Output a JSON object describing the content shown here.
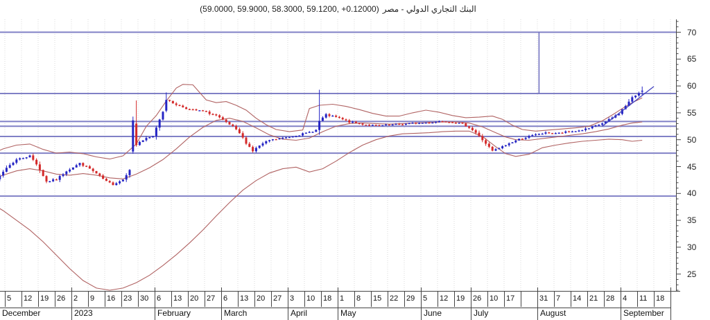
{
  "chart_data": {
    "type": "candlestick",
    "title_values": "(59.0000, 59.9000, 58.3000, 59.1200, +0.12000)",
    "title_name": "البنك التجاري الدولي - مصر",
    "last_quote": {
      "open": 59.0,
      "high": 59.9,
      "low": 58.3,
      "close": 59.12,
      "change": "+0.12000"
    },
    "y_axis": {
      "ticks": [
        70,
        65,
        60,
        55,
        50,
        45,
        40,
        35,
        30,
        25
      ],
      "minor_step": 1,
      "range_shown": [
        22,
        72
      ]
    },
    "x_axis": {
      "week_labels": [
        "5",
        "12",
        "19",
        "26",
        "2",
        "9",
        "16",
        "23",
        "30",
        "6",
        "13",
        "20",
        "27",
        "6",
        "13",
        "20",
        "27",
        "3",
        "10",
        "18",
        "1",
        "8",
        "15",
        "22",
        "29",
        "5",
        "12",
        "19",
        "26",
        "10",
        "17",
        "",
        "31",
        "7",
        "14",
        "21",
        "28",
        "4",
        "11",
        "18"
      ],
      "months": [
        {
          "label": "December",
          "weeks": 4
        },
        {
          "label": "2023",
          "weeks": 5
        },
        {
          "label": "February",
          "weeks": 4
        },
        {
          "label": "March",
          "weeks": 4
        },
        {
          "label": "April",
          "weeks": 3
        },
        {
          "label": "May",
          "weeks": 5
        },
        {
          "label": "June",
          "weeks": 3
        },
        {
          "label": "July",
          "weeks": 4
        },
        {
          "label": "August",
          "weeks": 5
        },
        {
          "label": "September",
          "weeks": 3
        }
      ]
    },
    "close_anchors": [
      [
        0,
        41.3
      ],
      [
        2,
        42.5
      ],
      [
        5,
        44.8
      ],
      [
        8,
        46.3
      ],
      [
        12,
        47.0
      ],
      [
        14,
        45.5
      ],
      [
        17,
        42.2
      ],
      [
        20,
        42.6
      ],
      [
        23,
        44.2
      ],
      [
        27,
        45.6
      ],
      [
        30,
        44.6
      ],
      [
        33,
        43.2
      ],
      [
        35,
        42.2
      ],
      [
        37,
        41.7
      ],
      [
        40,
        42.6
      ],
      [
        42,
        44.5
      ],
      [
        43,
        53.6
      ],
      [
        44,
        49.0
      ],
      [
        45,
        49.6
      ],
      [
        47,
        50.2
      ],
      [
        49,
        50.6
      ],
      [
        50,
        52.3
      ],
      [
        52,
        55.3
      ],
      [
        53,
        57.4
      ],
      [
        55,
        56.8
      ],
      [
        57,
        56.3
      ],
      [
        60,
        55.6
      ],
      [
        64,
        55.3
      ],
      [
        68,
        54.5
      ],
      [
        70,
        53.6
      ],
      [
        73,
        52.4
      ],
      [
        75,
        51.2
      ],
      [
        77,
        49.4
      ],
      [
        79,
        47.9
      ],
      [
        81,
        48.9
      ],
      [
        84,
        49.9
      ],
      [
        88,
        50.3
      ],
      [
        92,
        50.8
      ],
      [
        95,
        51.2
      ],
      [
        98,
        51.8
      ],
      [
        99,
        53.5
      ],
      [
        101,
        54.6
      ],
      [
        104,
        54.2
      ],
      [
        108,
        53.3
      ],
      [
        112,
        52.9
      ],
      [
        116,
        52.6
      ],
      [
        120,
        52.7
      ],
      [
        124,
        52.9
      ],
      [
        128,
        53.1
      ],
      [
        132,
        53.2
      ],
      [
        136,
        53.5
      ],
      [
        139,
        53.3
      ],
      [
        142,
        52.9
      ],
      [
        144,
        52.3
      ],
      [
        146,
        51.3
      ],
      [
        147,
        50.6
      ],
      [
        149,
        49.3
      ],
      [
        151,
        47.9
      ],
      [
        153,
        48.4
      ],
      [
        156,
        49.3
      ],
      [
        159,
        50.1
      ],
      [
        162,
        50.6
      ],
      [
        165,
        51.1
      ],
      [
        168,
        51.3
      ],
      [
        171,
        51.2
      ],
      [
        174,
        51.5
      ],
      [
        177,
        51.7
      ],
      [
        180,
        52.1
      ],
      [
        183,
        52.8
      ],
      [
        185,
        53.3
      ],
      [
        187,
        54.1
      ],
      [
        189,
        54.9
      ],
      [
        191,
        56.3
      ],
      [
        193,
        57.8
      ],
      [
        195,
        58.7
      ],
      [
        196,
        59.12
      ]
    ],
    "candle_overrides": [
      {
        "d": 43,
        "o": 47.8,
        "h": 54.3,
        "l": 47.4,
        "c": 53.6
      },
      {
        "d": 44,
        "o": 53.0,
        "h": 57.3,
        "l": 48.7,
        "c": 49.0
      },
      {
        "d": 53,
        "o": 55.4,
        "h": 58.8,
        "l": 55.1,
        "c": 57.4
      },
      {
        "d": 99,
        "o": 51.8,
        "h": 59.3,
        "l": 50.9,
        "c": 53.5
      },
      {
        "d": 196,
        "o": 59.0,
        "h": 59.9,
        "l": 58.3,
        "c": 59.12
      }
    ],
    "bands": {
      "upper": [
        [
          0,
          47.2
        ],
        [
          4,
          48.3
        ],
        [
          8,
          49.0
        ],
        [
          12,
          49.2
        ],
        [
          16,
          48.2
        ],
        [
          20,
          47.5
        ],
        [
          24,
          47.7
        ],
        [
          28,
          47.4
        ],
        [
          32,
          46.8
        ],
        [
          36,
          46.4
        ],
        [
          40,
          47.0
        ],
        [
          44,
          49.2
        ],
        [
          47,
          52.5
        ],
        [
          50,
          54.5
        ],
        [
          53,
          57.2
        ],
        [
          56,
          59.6
        ],
        [
          58,
          60.3
        ],
        [
          61,
          60.2
        ],
        [
          63,
          58.8
        ],
        [
          65,
          57.4
        ],
        [
          68,
          56.9
        ],
        [
          71,
          57.1
        ],
        [
          74,
          56.4
        ],
        [
          77,
          55.5
        ],
        [
          80,
          54.0
        ],
        [
          83,
          52.8
        ],
        [
          86,
          51.9
        ],
        [
          90,
          51.5
        ],
        [
          94,
          51.8
        ],
        [
          96,
          55.8
        ],
        [
          99,
          56.4
        ],
        [
          103,
          56.6
        ],
        [
          107,
          56.2
        ],
        [
          111,
          55.6
        ],
        [
          115,
          54.9
        ],
        [
          119,
          54.4
        ],
        [
          123,
          54.4
        ],
        [
          127,
          55.0
        ],
        [
          131,
          55.5
        ],
        [
          135,
          55.1
        ],
        [
          139,
          54.5
        ],
        [
          143,
          54.1
        ],
        [
          147,
          54.2
        ],
        [
          151,
          54.4
        ],
        [
          154,
          53.8
        ],
        [
          157,
          52.7
        ],
        [
          160,
          51.9
        ],
        [
          164,
          51.6
        ],
        [
          168,
          51.8
        ],
        [
          172,
          52.0
        ],
        [
          176,
          52.2
        ],
        [
          180,
          52.5
        ],
        [
          184,
          53.5
        ],
        [
          187,
          54.6
        ],
        [
          190,
          55.8
        ],
        [
          193,
          56.9
        ],
        [
          196,
          57.8
        ]
      ],
      "middle": [
        [
          0,
          42.6
        ],
        [
          4,
          43.4
        ],
        [
          8,
          44.2
        ],
        [
          12,
          44.6
        ],
        [
          16,
          44.2
        ],
        [
          20,
          43.6
        ],
        [
          24,
          43.4
        ],
        [
          28,
          43.7
        ],
        [
          32,
          43.4
        ],
        [
          36,
          42.9
        ],
        [
          40,
          42.7
        ],
        [
          44,
          43.6
        ],
        [
          48,
          44.8
        ],
        [
          52,
          46.3
        ],
        [
          56,
          48.3
        ],
        [
          60,
          50.5
        ],
        [
          64,
          52.3
        ],
        [
          68,
          53.6
        ],
        [
          72,
          54.0
        ],
        [
          76,
          53.4
        ],
        [
          80,
          52.2
        ],
        [
          84,
          50.9
        ],
        [
          88,
          50.1
        ],
        [
          92,
          49.9
        ],
        [
          96,
          50.3
        ],
        [
          100,
          51.5
        ],
        [
          104,
          52.5
        ],
        [
          108,
          53.0
        ],
        [
          112,
          53.1
        ],
        [
          116,
          53.0
        ],
        [
          120,
          52.9
        ],
        [
          124,
          53.0
        ],
        [
          128,
          53.1
        ],
        [
          132,
          53.2
        ],
        [
          136,
          53.3
        ],
        [
          140,
          53.3
        ],
        [
          144,
          53.1
        ],
        [
          148,
          52.4
        ],
        [
          152,
          51.3
        ],
        [
          155,
          50.5
        ],
        [
          158,
          50.0
        ],
        [
          162,
          49.9
        ],
        [
          166,
          50.2
        ],
        [
          170,
          50.5
        ],
        [
          174,
          50.8
        ],
        [
          178,
          51.1
        ],
        [
          182,
          51.5
        ],
        [
          186,
          52.0
        ],
        [
          190,
          52.7
        ],
        [
          193,
          53.1
        ],
        [
          196,
          53.3
        ]
      ],
      "lower": [
        [
          0,
          38.3
        ],
        [
          4,
          36.8
        ],
        [
          8,
          35.0
        ],
        [
          12,
          33.2
        ],
        [
          16,
          31.0
        ],
        [
          20,
          28.5
        ],
        [
          24,
          26.0
        ],
        [
          28,
          23.8
        ],
        [
          32,
          22.4
        ],
        [
          36,
          22.0
        ],
        [
          40,
          22.4
        ],
        [
          44,
          23.4
        ],
        [
          48,
          24.8
        ],
        [
          52,
          26.6
        ],
        [
          56,
          28.6
        ],
        [
          60,
          30.8
        ],
        [
          64,
          33.2
        ],
        [
          68,
          35.8
        ],
        [
          72,
          38.3
        ],
        [
          76,
          40.6
        ],
        [
          80,
          42.4
        ],
        [
          84,
          43.8
        ],
        [
          88,
          44.6
        ],
        [
          92,
          44.9
        ],
        [
          96,
          44.0
        ],
        [
          100,
          44.6
        ],
        [
          104,
          46.0
        ],
        [
          108,
          47.6
        ],
        [
          112,
          49.0
        ],
        [
          116,
          50.0
        ],
        [
          120,
          50.7
        ],
        [
          124,
          51.1
        ],
        [
          128,
          51.2
        ],
        [
          132,
          51.3
        ],
        [
          136,
          51.5
        ],
        [
          140,
          51.6
        ],
        [
          144,
          51.6
        ],
        [
          148,
          50.6
        ],
        [
          152,
          48.7
        ],
        [
          155,
          47.4
        ],
        [
          158,
          46.9
        ],
        [
          162,
          47.3
        ],
        [
          166,
          48.5
        ],
        [
          170,
          49.0
        ],
        [
          174,
          49.4
        ],
        [
          178,
          49.7
        ],
        [
          182,
          49.9
        ],
        [
          186,
          50.1
        ],
        [
          190,
          50.0
        ],
        [
          193,
          49.7
        ],
        [
          196,
          49.9
        ]
      ]
    },
    "horizontal_levels": [
      70.0,
      58.6,
      53.4,
      52.5,
      50.6,
      47.5,
      39.5
    ],
    "trendline": {
      "from_day": 184,
      "from_price": 52.5,
      "to_day": 199.5,
      "to_price": 59.9
    },
    "vertical_line": {
      "day": 165,
      "from_price": 70.0,
      "to_price": 58.6
    },
    "colors": {
      "up": "#2424c4",
      "down": "#d42a2a",
      "band": "#b06262",
      "level": "#6b6bbd",
      "trend": "#4343c0",
      "grid": "#d9d9d9",
      "axis": "#444444",
      "text": "#111111"
    }
  }
}
